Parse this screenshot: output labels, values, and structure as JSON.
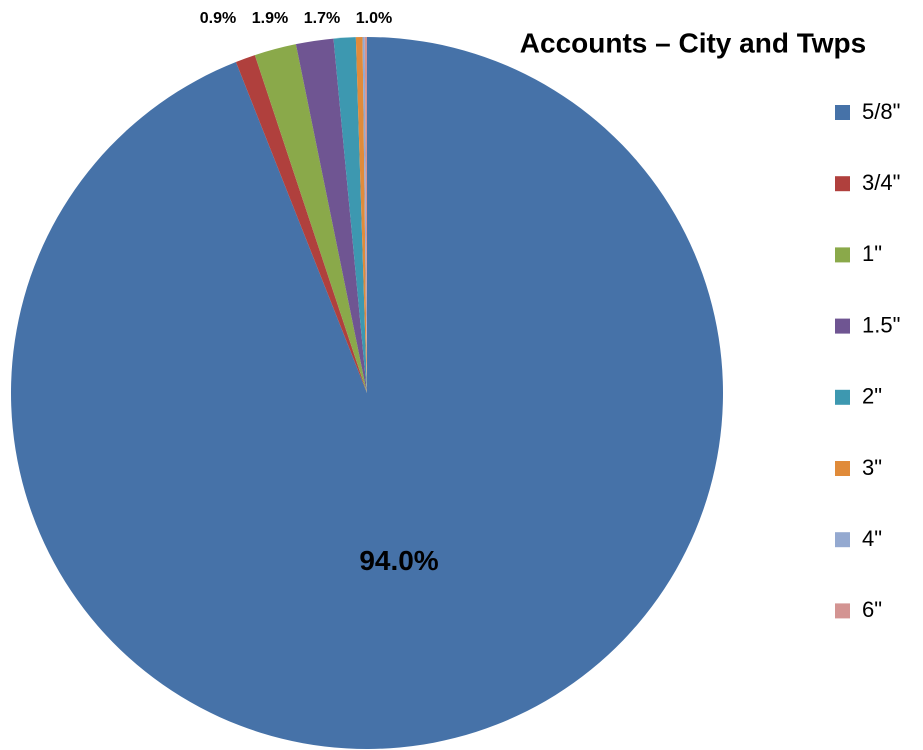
{
  "chart_data": {
    "type": "pie",
    "title": "Accounts – City and Twps",
    "categories": [
      "5/8\"",
      "3/4\"",
      "1\"",
      "1.5\"",
      "2\"",
      "3\"",
      "4\"",
      "6\""
    ],
    "values": [
      94.0,
      0.9,
      1.9,
      1.7,
      1.0,
      0.3,
      0.1,
      0.1
    ],
    "value_labels": [
      "94.0%",
      "0.9%",
      "1.9%",
      "1.7%",
      "1.0%",
      null,
      null,
      null
    ],
    "colors": [
      "#4672a8",
      "#b0403d",
      "#8aa94a",
      "#6f5592",
      "#3d98b0",
      "#e08b3a",
      "#94a9d0",
      "#d39492"
    ],
    "legend": "right"
  }
}
